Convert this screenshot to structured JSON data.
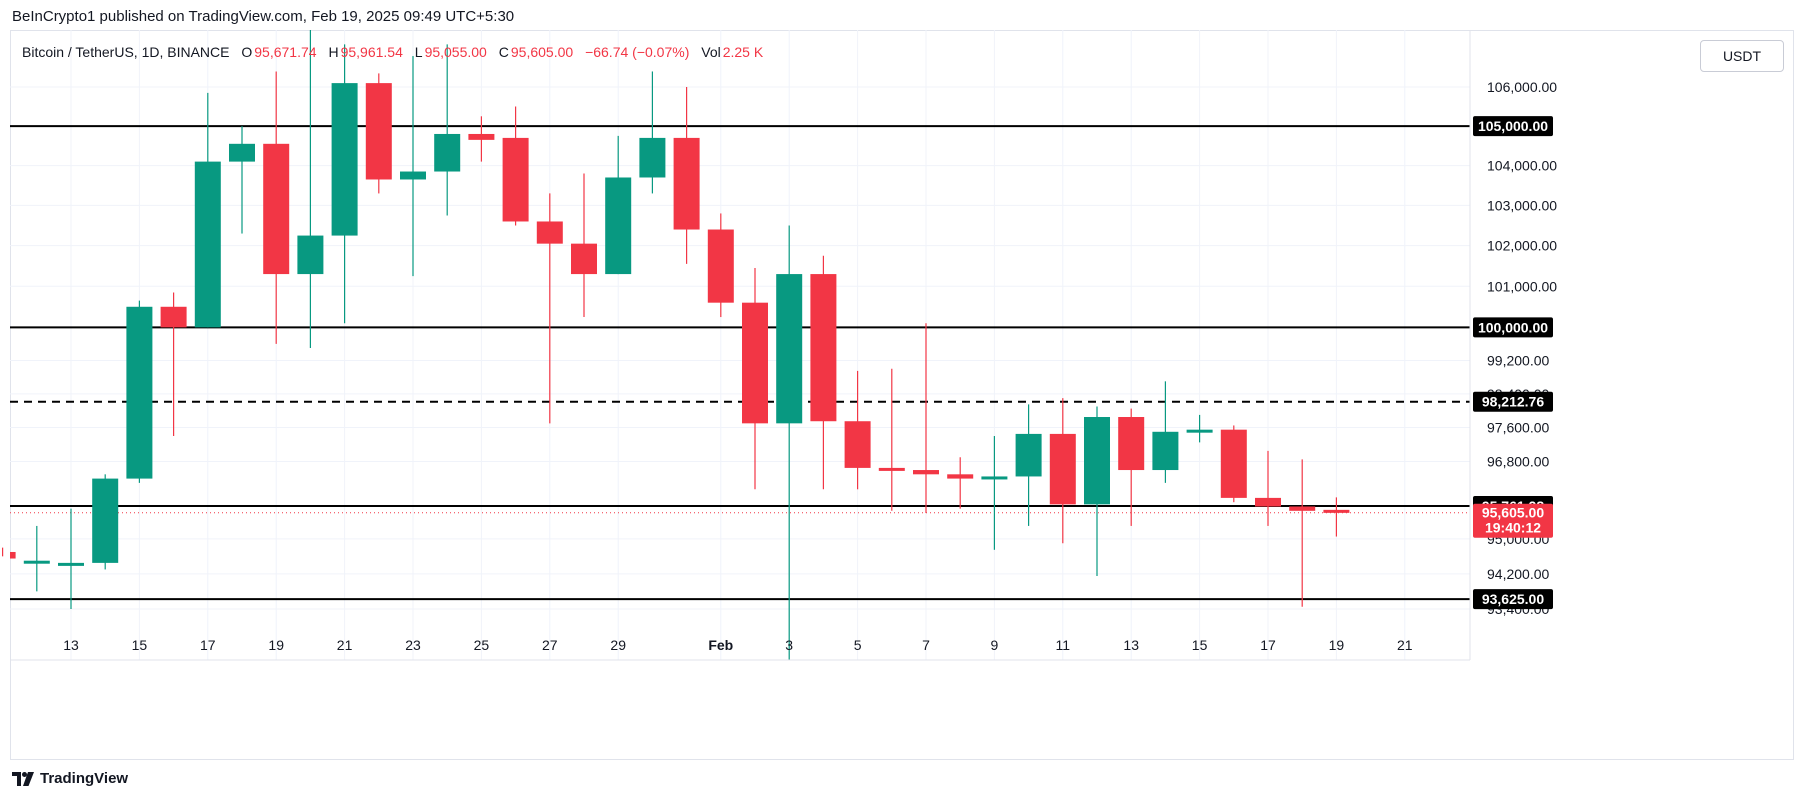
{
  "header": {
    "publisher": "BeInCrypto1 published on TradingView.com, Feb 19, 2025 09:49 UTC+5:30"
  },
  "legend": {
    "symbol": "Bitcoin / TetherUS, 1D, BINANCE",
    "open_label": "O",
    "open": "95,671.74",
    "high_label": "H",
    "high": "95,961.54",
    "low_label": "L",
    "low": "95,055.00",
    "close_label": "C",
    "close": "95,605.00",
    "change": "−66.74 (−0.07%)",
    "vol_label": "Vol",
    "vol": "2.25 K"
  },
  "currency": "USDT",
  "footer": {
    "brand": "TradingView"
  },
  "colors": {
    "up": "#089981",
    "down": "#f23645",
    "level_line": "#000000",
    "grid": "#f0f3fa",
    "price_tag": "#f23645",
    "level_tag": "#000000"
  },
  "chart_data": {
    "type": "candlestick",
    "symbol": "Bitcoin / TetherUS",
    "interval": "1D",
    "exchange": "BINANCE",
    "y_axis": {
      "scale": "log",
      "ticks": [
        "106,000.00",
        "104,000.00",
        "103,000.00",
        "102,000.00",
        "101,000.00",
        "99,200.00",
        "98,400.00",
        "97,600.00",
        "96,800.00",
        "95,000.00",
        "94,200.00",
        "93,400.00"
      ],
      "tick_values": [
        106000,
        104000,
        103000,
        102000,
        101000,
        99200,
        98400,
        97600,
        96800,
        95000,
        94200,
        93400
      ]
    },
    "x_axis": {
      "ticks": [
        "13",
        "15",
        "17",
        "19",
        "21",
        "23",
        "25",
        "27",
        "29",
        "Feb",
        "3",
        "5",
        "7",
        "9",
        "11",
        "13",
        "15",
        "17",
        "19",
        "21"
      ],
      "tick_dates": [
        "2025-01-13",
        "2025-01-15",
        "2025-01-17",
        "2025-01-19",
        "2025-01-21",
        "2025-01-23",
        "2025-01-25",
        "2025-01-27",
        "2025-01-29",
        "2025-02-01",
        "2025-02-03",
        "2025-02-05",
        "2025-02-07",
        "2025-02-09",
        "2025-02-11",
        "2025-02-13",
        "2025-02-15",
        "2025-02-17",
        "2025-02-19",
        "2025-02-21"
      ]
    },
    "candles": [
      {
        "date": "2025-01-11",
        "o": 94700,
        "h": 94800,
        "l": 94600,
        "c": 94550
      },
      {
        "date": "2025-01-12",
        "o": 94500,
        "h": 95300,
        "l": 93800,
        "c": 94500
      },
      {
        "date": "2025-01-13",
        "o": 94450,
        "h": 95700,
        "l": 93400,
        "c": 94450
      },
      {
        "date": "2025-01-14",
        "o": 94450,
        "h": 96500,
        "l": 94300,
        "c": 96400
      },
      {
        "date": "2025-01-15",
        "o": 96400,
        "h": 100650,
        "l": 96300,
        "c": 100500
      },
      {
        "date": "2025-01-16",
        "o": 100500,
        "h": 100850,
        "l": 97400,
        "c": 100000
      },
      {
        "date": "2025-01-17",
        "o": 100000,
        "h": 105850,
        "l": 100000,
        "c": 104100
      },
      {
        "date": "2025-01-18",
        "o": 104100,
        "h": 105000,
        "l": 102300,
        "c": 104550
      },
      {
        "date": "2025-01-19",
        "o": 104550,
        "h": 106400,
        "l": 99600,
        "c": 101300
      },
      {
        "date": "2025-01-20",
        "o": 101300,
        "h": 109000,
        "l": 99500,
        "c": 102250
      },
      {
        "date": "2025-01-21",
        "o": 102250,
        "h": 107100,
        "l": 100100,
        "c": 106100
      },
      {
        "date": "2025-01-22",
        "o": 106100,
        "h": 106350,
        "l": 103300,
        "c": 103650
      },
      {
        "date": "2025-01-23",
        "o": 103650,
        "h": 106800,
        "l": 101250,
        "c": 103850
      },
      {
        "date": "2025-01-24",
        "o": 103850,
        "h": 107100,
        "l": 102750,
        "c": 104800
      },
      {
        "date": "2025-01-25",
        "o": 104800,
        "h": 105250,
        "l": 104100,
        "c": 104650
      },
      {
        "date": "2025-01-26",
        "o": 104700,
        "h": 105500,
        "l": 102500,
        "c": 102600
      },
      {
        "date": "2025-01-27",
        "o": 102600,
        "h": 103300,
        "l": 97700,
        "c": 102050
      },
      {
        "date": "2025-01-28",
        "o": 102050,
        "h": 103800,
        "l": 100250,
        "c": 101300
      },
      {
        "date": "2025-01-29",
        "o": 101300,
        "h": 104750,
        "l": 101300,
        "c": 103700
      },
      {
        "date": "2025-01-30",
        "o": 103700,
        "h": 106400,
        "l": 103300,
        "c": 104700
      },
      {
        "date": "2025-01-31",
        "o": 104700,
        "h": 106000,
        "l": 101550,
        "c": 102400
      },
      {
        "date": "2025-02-01",
        "o": 102400,
        "h": 102800,
        "l": 100250,
        "c": 100600
      },
      {
        "date": "2025-02-02",
        "o": 100600,
        "h": 101450,
        "l": 96150,
        "c": 97700
      },
      {
        "date": "2025-02-03",
        "o": 97700,
        "h": 102500,
        "l": 91250,
        "c": 101300
      },
      {
        "date": "2025-02-04",
        "o": 101300,
        "h": 101750,
        "l": 96150,
        "c": 97750
      },
      {
        "date": "2025-02-05",
        "o": 97750,
        "h": 98950,
        "l": 96150,
        "c": 96650
      },
      {
        "date": "2025-02-06",
        "o": 96650,
        "h": 99000,
        "l": 95650,
        "c": 96600
      },
      {
        "date": "2025-02-07",
        "o": 96600,
        "h": 100100,
        "l": 95600,
        "c": 96500
      },
      {
        "date": "2025-02-08",
        "o": 96500,
        "h": 96900,
        "l": 95700,
        "c": 96400
      },
      {
        "date": "2025-02-09",
        "o": 96400,
        "h": 97400,
        "l": 94750,
        "c": 96450
      },
      {
        "date": "2025-02-10",
        "o": 96450,
        "h": 98150,
        "l": 95300,
        "c": 97450
      },
      {
        "date": "2025-02-11",
        "o": 97450,
        "h": 98300,
        "l": 94900,
        "c": 95800
      },
      {
        "date": "2025-02-12",
        "o": 95800,
        "h": 98100,
        "l": 94150,
        "c": 97850
      },
      {
        "date": "2025-02-13",
        "o": 97850,
        "h": 98050,
        "l": 95300,
        "c": 96600
      },
      {
        "date": "2025-02-14",
        "o": 96600,
        "h": 98700,
        "l": 96300,
        "c": 97500
      },
      {
        "date": "2025-02-15",
        "o": 97500,
        "h": 97900,
        "l": 97250,
        "c": 97550
      },
      {
        "date": "2025-02-16",
        "o": 97550,
        "h": 97650,
        "l": 95850,
        "c": 95950
      },
      {
        "date": "2025-02-17",
        "o": 95950,
        "h": 97050,
        "l": 95300,
        "c": 95750
      },
      {
        "date": "2025-02-18",
        "o": 95750,
        "h": 96850,
        "l": 93450,
        "c": 95650
      },
      {
        "date": "2025-02-19",
        "o": 95672,
        "h": 95962,
        "l": 95055,
        "c": 95605
      }
    ],
    "levels": [
      {
        "value": 105000,
        "label": "105,000.00",
        "style": "solid"
      },
      {
        "value": 100000,
        "label": "100,000.00",
        "style": "solid"
      },
      {
        "value": 98212.76,
        "label": "98,212.76",
        "style": "dashed"
      },
      {
        "value": 95761.28,
        "label": "95,761.28",
        "style": "solid"
      },
      {
        "value": 93625,
        "label": "93,625.00",
        "style": "solid"
      }
    ],
    "last_price": {
      "value": 95605,
      "label": "95,605.00",
      "countdown": "19:40:12"
    }
  }
}
